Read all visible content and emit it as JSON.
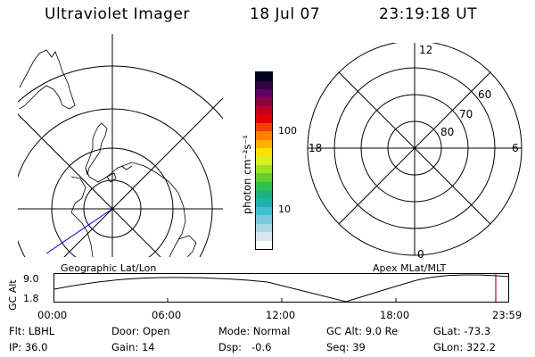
{
  "header": {
    "title": "Ultraviolet Imager",
    "date": "18 Jul 07",
    "time": "23:19:18 UT"
  },
  "left_panel": {
    "label": "Geographic Lat/Lon"
  },
  "right_panel": {
    "label": "Apex MLat/MLT",
    "mlt_labels": {
      "top": "12",
      "left": "18",
      "right": "6",
      "bottom": "0"
    },
    "lat_labels": [
      "60",
      "70",
      "80"
    ]
  },
  "colorbar": {
    "unit_label": "photon cm⁻²s⁻¹",
    "ticks": [
      "100",
      "10"
    ],
    "colors": [
      "#ffffff",
      "#d8e6ee",
      "#a8d8e8",
      "#7cc8e0",
      "#40c0d0",
      "#20b0b0",
      "#20b080",
      "#30c050",
      "#60d030",
      "#a0e020",
      "#d8f020",
      "#ffe000",
      "#ffb000",
      "#ff8000",
      "#f04000",
      "#e00000",
      "#c00020",
      "#900040",
      "#600060",
      "#300040",
      "#000020"
    ]
  },
  "timeline": {
    "y_axis_label": "GC Alt",
    "y_top": "9.0",
    "y_bottom": "1.8",
    "x_ticks": [
      "00:00",
      "06:00",
      "12:00",
      "18:00",
      "23:59"
    ],
    "marker_color": "#cc0000"
  },
  "info": {
    "flt": "Flt: LBHL",
    "ip": "IP: 36.0",
    "door": "Door: Open",
    "gain": "Gain: 14",
    "mode": "Mode: Normal",
    "dsp": "Dsp:   -0.6",
    "gc_alt": "GC Alt: 9.0 Re",
    "seq": "Seq: 39",
    "glat": "GLat: -73.3",
    "glon": "GLon: 322.2"
  }
}
